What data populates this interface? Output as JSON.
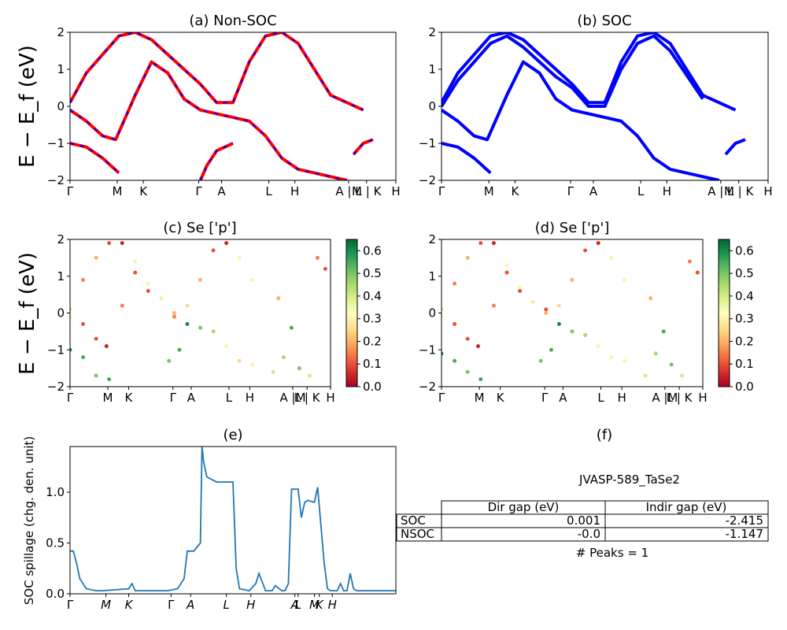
{
  "colors": {
    "band_red": "#ff0000",
    "band_blue": "#0000ff",
    "spillage_line": "#1f77b4",
    "colormap": "RdYlGn"
  },
  "chart_data": [
    {
      "id": "a",
      "type": "line",
      "title": "(a) Non-SOC",
      "ylabel": "E − E_f (eV)",
      "ylim": [
        -2,
        2
      ],
      "yticks": [
        "2",
        "1",
        "0",
        "−1",
        "−2"
      ],
      "kticks": [
        "Γ",
        "M",
        "K",
        "Γ",
        "A",
        "L",
        "H",
        "A | L",
        "M | K",
        "H"
      ],
      "series": [
        {
          "style": "red-blue-dash",
          "x": [
            0,
            0.05,
            0.15,
            0.2,
            0.25,
            0.35,
            0.4,
            0.45,
            0.5,
            0.55,
            0.6,
            0.65,
            0.7,
            0.8,
            0.9
          ],
          "y": [
            0.1,
            0.9,
            1.9,
            2.0,
            1.8,
            1.0,
            0.6,
            0.1,
            0.1,
            1.2,
            1.9,
            2.0,
            1.7,
            0.3,
            -0.1
          ]
        },
        {
          "style": "red-blue-dash",
          "x": [
            0,
            0.05,
            0.1,
            0.14,
            0.2,
            0.25,
            0.3,
            0.35,
            0.4,
            0.45,
            0.5,
            0.55,
            0.6,
            0.65,
            0.7,
            0.8,
            0.85
          ],
          "y": [
            -0.1,
            -0.4,
            -0.8,
            -0.9,
            0.3,
            1.2,
            0.9,
            0.2,
            -0.1,
            -0.2,
            -0.3,
            -0.4,
            -0.8,
            -1.4,
            -1.7,
            -1.9,
            -2.0
          ]
        },
        {
          "style": "red-blue-dash",
          "x": [
            0,
            0.05,
            0.1,
            0.15
          ],
          "y": [
            -1.0,
            -1.1,
            -1.4,
            -1.8
          ]
        },
        {
          "style": "red-blue-dash",
          "x": [
            0.4,
            0.42,
            0.45,
            0.5
          ],
          "y": [
            -2.0,
            -1.6,
            -1.2,
            -1.0
          ]
        },
        {
          "style": "red-blue-dash",
          "x": [
            0.87,
            0.9,
            0.93
          ],
          "y": [
            -1.3,
            -1.0,
            -0.9
          ]
        }
      ]
    },
    {
      "id": "b",
      "type": "line",
      "title": "(b) SOC",
      "ylabel": "",
      "ylim": [
        -2,
        2
      ],
      "yticks": [
        "2",
        "1",
        "0",
        "−1",
        "−2"
      ],
      "kticks": [
        "Γ",
        "M",
        "K",
        "Γ",
        "A",
        "L",
        "H",
        "A | L",
        "M | K",
        "H"
      ],
      "series": [
        {
          "style": "blue",
          "x": [
            0,
            0.05,
            0.15,
            0.2,
            0.25,
            0.35,
            0.4,
            0.45,
            0.5,
            0.55,
            0.6,
            0.65,
            0.7,
            0.8,
            0.9
          ],
          "y": [
            0.1,
            0.9,
            1.9,
            2.0,
            1.8,
            1.0,
            0.6,
            0.1,
            0.1,
            1.2,
            1.9,
            2.0,
            1.7,
            0.3,
            -0.1
          ]
        },
        {
          "style": "blue",
          "x": [
            0,
            0.05,
            0.15,
            0.2,
            0.25,
            0.35,
            0.4,
            0.45,
            0.5,
            0.55,
            0.6,
            0.65,
            0.7,
            0.8
          ],
          "y": [
            0.0,
            0.7,
            1.7,
            1.9,
            1.6,
            0.8,
            0.5,
            0.0,
            0.0,
            1.0,
            1.7,
            1.9,
            1.5,
            0.2
          ]
        },
        {
          "style": "blue",
          "x": [
            0,
            0.05,
            0.1,
            0.14,
            0.2,
            0.25,
            0.3,
            0.35,
            0.4,
            0.45,
            0.5,
            0.55,
            0.6,
            0.65,
            0.7,
            0.8,
            0.85
          ],
          "y": [
            -0.1,
            -0.4,
            -0.8,
            -0.9,
            0.3,
            1.2,
            0.9,
            0.2,
            -0.1,
            -0.2,
            -0.3,
            -0.4,
            -0.8,
            -1.4,
            -1.7,
            -1.9,
            -2.0
          ]
        },
        {
          "style": "blue",
          "x": [
            0,
            0.05,
            0.1,
            0.15
          ],
          "y": [
            -1.0,
            -1.1,
            -1.4,
            -1.8
          ]
        },
        {
          "style": "blue",
          "x": [
            0.87,
            0.9,
            0.93
          ],
          "y": [
            -1.3,
            -1.0,
            -0.9
          ]
        }
      ]
    },
    {
      "id": "c",
      "type": "scatter",
      "title": "(c)  Se ['p']",
      "ylabel": "E − E_f (eV)",
      "ylim": [
        -2,
        2
      ],
      "yticks": [
        "2",
        "1",
        "0",
        "−1",
        "−2"
      ],
      "kticks": [
        "Γ",
        "M",
        "K",
        "Γ",
        "A",
        "L",
        "H",
        "A |M",
        "L | K",
        "H"
      ],
      "colorbar": {
        "vmin": 0.0,
        "vmax": 0.65,
        "ticks": [
          "0.0",
          "0.1",
          "0.2",
          "0.3",
          "0.4",
          "0.5",
          "0.6"
        ]
      },
      "points": [
        [
          0,
          0.1,
          0.25
        ],
        [
          0.05,
          0.9,
          0.15
        ],
        [
          0.1,
          1.5,
          0.2
        ],
        [
          0.15,
          1.9,
          0.1
        ],
        [
          0.2,
          1.9,
          0.05
        ],
        [
          0.25,
          1.4,
          0.35
        ],
        [
          0.3,
          0.8,
          0.3
        ],
        [
          0.35,
          0.4,
          0.28
        ],
        [
          0.4,
          0.0,
          0.2
        ],
        [
          0.45,
          0.2,
          0.25
        ],
        [
          0.5,
          0.9,
          0.2
        ],
        [
          0.55,
          1.7,
          0.1
        ],
        [
          0.6,
          1.9,
          0.05
        ],
        [
          0.65,
          1.5,
          0.3
        ],
        [
          0.7,
          0.9,
          0.35
        ],
        [
          0.8,
          0.4,
          0.2
        ],
        [
          0,
          -0.1,
          0.3
        ],
        [
          0.05,
          -0.3,
          0.1
        ],
        [
          0.1,
          -0.7,
          0.1
        ],
        [
          0.14,
          -0.9,
          0.05
        ],
        [
          0.2,
          0.2,
          0.15
        ],
        [
          0.25,
          1.1,
          0.1
        ],
        [
          0.3,
          0.6,
          0.1
        ],
        [
          0.4,
          -0.1,
          0.15
        ],
        [
          0.45,
          -0.3,
          0.6
        ],
        [
          0.5,
          -0.4,
          0.5
        ],
        [
          0.55,
          -0.5,
          0.45
        ],
        [
          0.6,
          -0.9,
          0.3
        ],
        [
          0.65,
          -1.3,
          0.25
        ],
        [
          0.7,
          -1.4,
          0.3
        ],
        [
          0,
          -1.0,
          0.6
        ],
        [
          0.05,
          -1.2,
          0.55
        ],
        [
          0.1,
          -1.7,
          0.5
        ],
        [
          0.15,
          -1.8,
          0.55
        ],
        [
          0.38,
          -1.3,
          0.5
        ],
        [
          0.42,
          -1.0,
          0.55
        ],
        [
          0.78,
          -1.6,
          0.4
        ],
        [
          0.82,
          -1.2,
          0.45
        ],
        [
          0.85,
          -0.4,
          0.55
        ],
        [
          0.88,
          -1.5,
          0.5
        ],
        [
          0.92,
          -1.7,
          0.4
        ],
        [
          0.95,
          1.5,
          0.15
        ],
        [
          0.98,
          1.2,
          0.1
        ]
      ]
    },
    {
      "id": "d",
      "type": "scatter",
      "title": "(d) Se ['p']",
      "ylabel": "",
      "ylim": [
        -2,
        2
      ],
      "yticks": [
        "2",
        "1",
        "0",
        "−1",
        "−2"
      ],
      "kticks": [
        "Γ",
        "M",
        "K",
        "Γ",
        "A",
        "L",
        "H",
        "A |M",
        "L | K",
        "H"
      ],
      "colorbar": {
        "vmin": 0.0,
        "vmax": 0.65,
        "ticks": [
          "0.0",
          "0.1",
          "0.2",
          "0.3",
          "0.4",
          "0.5",
          "0.6"
        ]
      },
      "points": [
        [
          0,
          0.1,
          0.25
        ],
        [
          0.05,
          0.8,
          0.15
        ],
        [
          0.1,
          1.5,
          0.2
        ],
        [
          0.15,
          1.9,
          0.1
        ],
        [
          0.2,
          1.9,
          0.05
        ],
        [
          0.25,
          1.3,
          0.35
        ],
        [
          0.3,
          0.7,
          0.3
        ],
        [
          0.35,
          0.3,
          0.28
        ],
        [
          0.4,
          0.0,
          0.2
        ],
        [
          0.45,
          0.2,
          0.25
        ],
        [
          0.5,
          0.9,
          0.2
        ],
        [
          0.55,
          1.7,
          0.1
        ],
        [
          0.6,
          1.9,
          0.05
        ],
        [
          0.65,
          1.5,
          0.3
        ],
        [
          0.7,
          0.9,
          0.35
        ],
        [
          0.8,
          0.4,
          0.2
        ],
        [
          0,
          -0.1,
          0.3
        ],
        [
          0.05,
          -0.3,
          0.1
        ],
        [
          0.1,
          -0.7,
          0.1
        ],
        [
          0.14,
          -0.9,
          0.05
        ],
        [
          0.2,
          0.2,
          0.15
        ],
        [
          0.25,
          1.1,
          0.1
        ],
        [
          0.3,
          0.6,
          0.1
        ],
        [
          0.4,
          0.1,
          0.1
        ],
        [
          0.45,
          -0.3,
          0.6
        ],
        [
          0.5,
          -0.5,
          0.5
        ],
        [
          0.55,
          -0.6,
          0.45
        ],
        [
          0.6,
          -0.9,
          0.3
        ],
        [
          0.65,
          -1.2,
          0.35
        ],
        [
          0.7,
          -1.3,
          0.3
        ],
        [
          0,
          -1.1,
          0.6
        ],
        [
          0.05,
          -1.3,
          0.55
        ],
        [
          0.1,
          -1.6,
          0.5
        ],
        [
          0.15,
          -1.8,
          0.55
        ],
        [
          0.38,
          -1.3,
          0.5
        ],
        [
          0.42,
          -1.0,
          0.55
        ],
        [
          0.78,
          -1.7,
          0.4
        ],
        [
          0.82,
          -1.1,
          0.45
        ],
        [
          0.85,
          -0.5,
          0.55
        ],
        [
          0.88,
          -1.4,
          0.5
        ],
        [
          0.92,
          -1.7,
          0.4
        ],
        [
          0.95,
          1.4,
          0.15
        ],
        [
          0.98,
          1.1,
          0.1
        ]
      ]
    },
    {
      "id": "e",
      "type": "line",
      "title": "(e)",
      "ylabel": "SOC spillage (chg. den. unit)",
      "ylim": [
        0,
        1.45
      ],
      "yticks": [
        "0.0",
        "0.5",
        "1.0"
      ],
      "kticks": [
        "Γ",
        "M",
        "K",
        "Γ",
        "A",
        "L",
        "H",
        "A",
        "L",
        "M",
        "K",
        "H"
      ],
      "x": [
        0,
        0.01,
        0.02,
        0.03,
        0.05,
        0.08,
        0.1,
        0.18,
        0.19,
        0.2,
        0.22,
        0.3,
        0.33,
        0.35,
        0.36,
        0.38,
        0.4,
        0.405,
        0.41,
        0.42,
        0.45,
        0.47,
        0.5,
        0.51,
        0.52,
        0.55,
        0.57,
        0.58,
        0.6,
        0.62,
        0.63,
        0.65,
        0.66,
        0.67,
        0.68,
        0.69,
        0.7,
        0.71,
        0.72,
        0.73,
        0.75,
        0.76,
        0.78,
        0.79,
        0.8,
        0.82,
        0.83,
        0.84,
        0.85,
        0.86,
        0.87,
        0.88,
        0.9,
        1.0
      ],
      "y": [
        0.42,
        0.42,
        0.3,
        0.15,
        0.05,
        0.03,
        0.03,
        0.05,
        0.1,
        0.03,
        0.03,
        0.03,
        0.05,
        0.15,
        0.42,
        0.42,
        0.5,
        1.45,
        1.3,
        1.15,
        1.1,
        1.1,
        1.1,
        0.25,
        0.05,
        0.03,
        0.1,
        0.2,
        0.03,
        0.03,
        0.08,
        0.03,
        0.03,
        0.1,
        1.03,
        1.03,
        1.03,
        0.75,
        0.9,
        0.92,
        0.9,
        1.05,
        0.3,
        0.05,
        0.03,
        0.03,
        0.1,
        0.03,
        0.03,
        0.2,
        0.05,
        0.03,
        0.03,
        0.03
      ]
    }
  ],
  "panel_f": {
    "title": "(f)",
    "compound": "JVASP-589_TaSe2",
    "table": {
      "headers": [
        "Dir gap (eV)",
        "Indir gap (eV)"
      ],
      "rows": [
        {
          "label": "SOC",
          "dir": "0.001",
          "indir": "-2.415"
        },
        {
          "label": "NSOC",
          "dir": "-0.0",
          "indir": "-1.147"
        }
      ]
    },
    "peaks_text": "# Peaks = 1"
  }
}
